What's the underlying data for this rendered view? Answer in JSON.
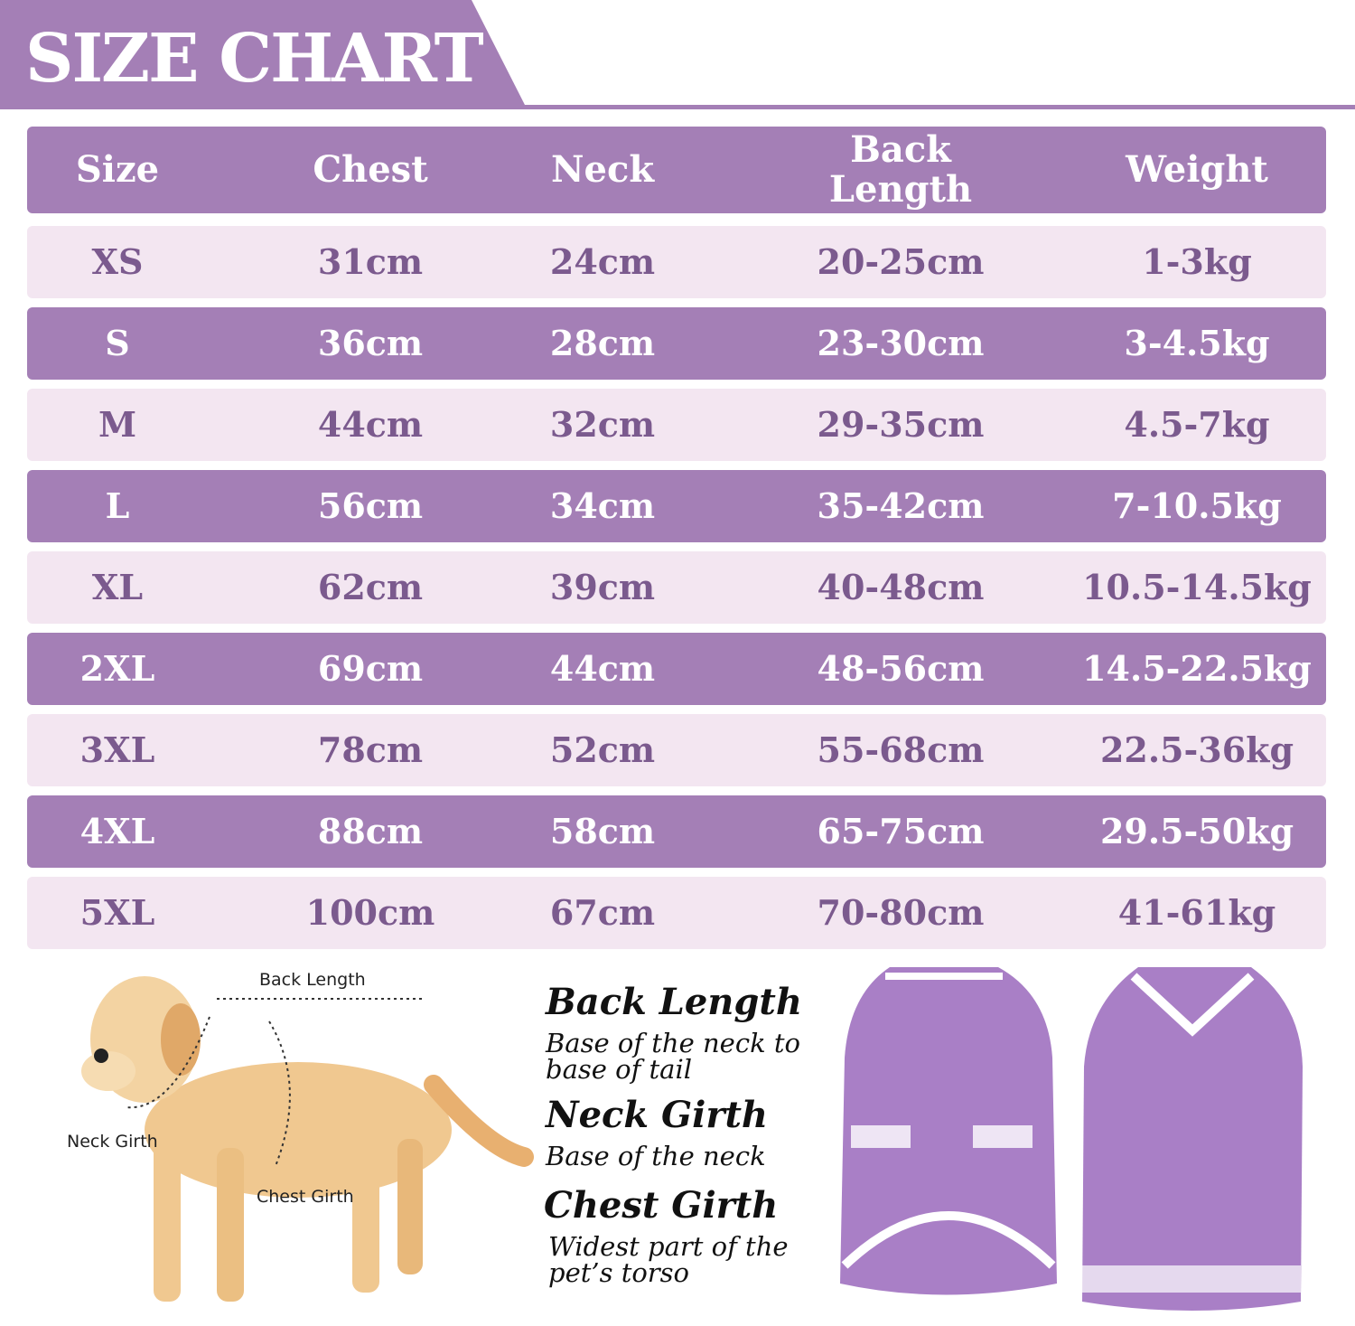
{
  "header": {
    "title": "SIZE CHART"
  },
  "table": {
    "columns": [
      "Size",
      "Chest",
      "Neck",
      "Back Length",
      "Weight"
    ],
    "rows": [
      [
        "XS",
        "31cm",
        "24cm",
        "20-25cm",
        "1-3kg"
      ],
      [
        "S",
        "36cm",
        "28cm",
        "23-30cm",
        "3-4.5kg"
      ],
      [
        "M",
        "44cm",
        "32cm",
        "29-35cm",
        "4.5-7kg"
      ],
      [
        "L",
        "56cm",
        "34cm",
        "35-42cm",
        "7-10.5kg"
      ],
      [
        "XL",
        "62cm",
        "39cm",
        "40-48cm",
        "10.5-14.5kg"
      ],
      [
        "2XL",
        "69cm",
        "44cm",
        "48-56cm",
        "14.5-22.5kg"
      ],
      [
        "3XL",
        "78cm",
        "52cm",
        "55-68cm",
        "22.5-36kg"
      ],
      [
        "4XL",
        "88cm",
        "58cm",
        "65-75cm",
        "29.5-50kg"
      ],
      [
        "5XL",
        "100cm",
        "67cm",
        "70-80cm",
        "41-61kg"
      ]
    ]
  },
  "diagram": {
    "labels": [
      "Back Length",
      "Neck Girth",
      "Chest Girth"
    ]
  },
  "definitions": [
    {
      "term": "Back Length",
      "text": "Base of the neck to base of tail"
    },
    {
      "term": "Neck Girth",
      "text": "Base of the neck"
    },
    {
      "term": "Chest Girth",
      "text": "Widest part of the pet’s torso"
    }
  ]
}
